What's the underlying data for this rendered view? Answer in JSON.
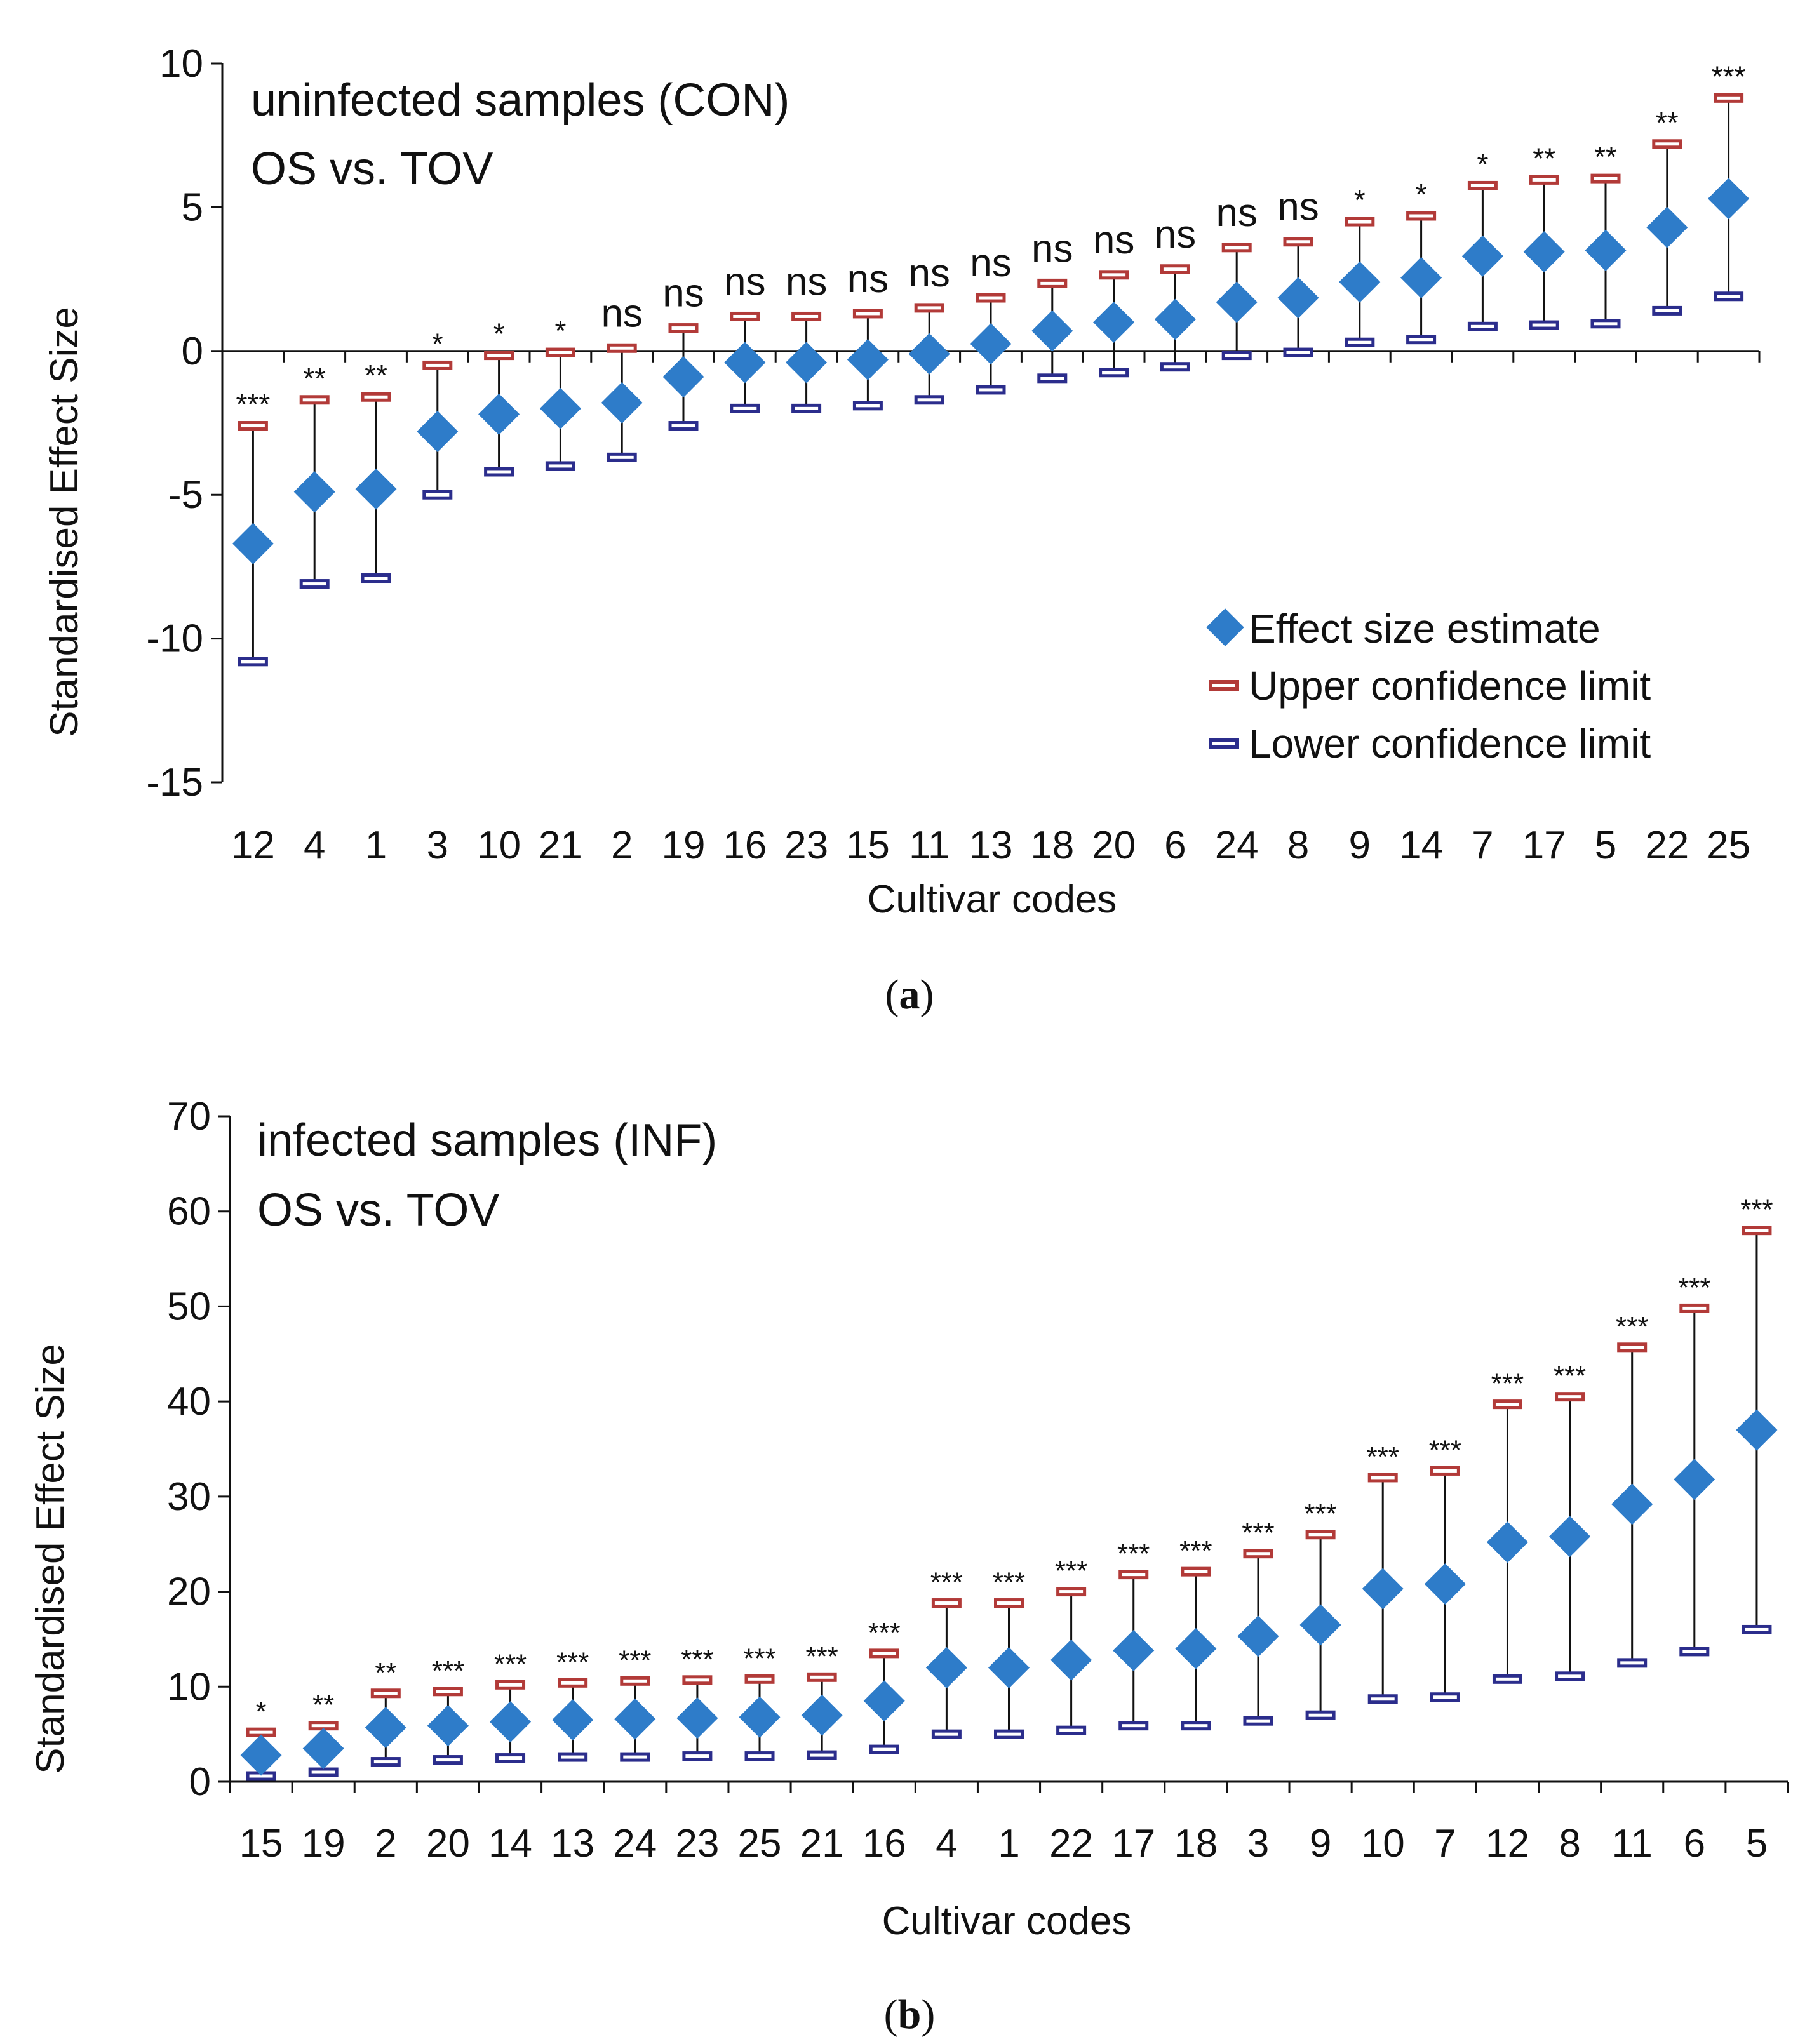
{
  "chart_data": [
    {
      "type": "scatter",
      "panel": "a",
      "title_lines": [
        "uninfected samples (CON)",
        "OS vs. TOV"
      ],
      "xlabel": "Cultivar codes",
      "ylabel": "Standardised Effect Size",
      "ylim": [
        -15,
        10
      ],
      "yticks": [
        10,
        5,
        0,
        -5,
        -10,
        -15
      ],
      "categories": [
        "12",
        "4",
        "1",
        "3",
        "10",
        "21",
        "2",
        "19",
        "16",
        "23",
        "15",
        "11",
        "13",
        "18",
        "20",
        "6",
        "24",
        "8",
        "9",
        "14",
        "7",
        "17",
        "5",
        "22",
        "25"
      ],
      "estimate": [
        -6.7,
        -4.9,
        -4.8,
        -2.8,
        -2.2,
        -2.0,
        -1.8,
        -0.9,
        -0.4,
        -0.4,
        -0.3,
        -0.1,
        0.25,
        0.7,
        1.0,
        1.1,
        1.7,
        1.85,
        2.4,
        2.55,
        3.3,
        3.45,
        3.5,
        4.3,
        5.3
      ],
      "upper": [
        -2.6,
        -1.7,
        -1.6,
        -0.5,
        -0.15,
        -0.05,
        0.1,
        0.8,
        1.2,
        1.2,
        1.3,
        1.5,
        1.85,
        2.35,
        2.65,
        2.85,
        3.6,
        3.8,
        4.5,
        4.7,
        5.75,
        5.95,
        6.0,
        7.2,
        8.8
      ],
      "lower": [
        -10.8,
        -8.1,
        -7.9,
        -5.0,
        -4.2,
        -4.0,
        -3.7,
        -2.6,
        -2.0,
        -2.0,
        -1.9,
        -1.7,
        -1.35,
        -0.95,
        -0.75,
        -0.55,
        -0.15,
        -0.05,
        0.3,
        0.4,
        0.85,
        0.9,
        0.95,
        1.4,
        1.9
      ],
      "significance": [
        "***",
        "**",
        "**",
        "*",
        "*",
        "*",
        "ns",
        "ns",
        "ns",
        "ns",
        "ns",
        "ns",
        "ns",
        "ns",
        "ns",
        "ns",
        "ns",
        "ns",
        "*",
        "*",
        "*",
        "**",
        "**",
        "**",
        "***"
      ],
      "legend": [
        "Effect size estimate",
        "Upper confidence limit",
        "Lower confidence limit"
      ],
      "legend_position": "bottom-right",
      "caption": "a"
    },
    {
      "type": "scatter",
      "panel": "b",
      "title_lines": [
        "infected samples (INF)",
        "OS vs. TOV"
      ],
      "xlabel": "Cultivar codes",
      "ylabel": "Standardised Effect Size",
      "ylim": [
        0,
        70
      ],
      "yticks": [
        70,
        60,
        50,
        40,
        30,
        20,
        10,
        0
      ],
      "categories": [
        "15",
        "19",
        "2",
        "20",
        "14",
        "13",
        "24",
        "23",
        "25",
        "21",
        "16",
        "4",
        "1",
        "22",
        "17",
        "18",
        "3",
        "9",
        "10",
        "7",
        "12",
        "8",
        "11",
        "6",
        "5"
      ],
      "estimate": [
        2.8,
        3.5,
        5.7,
        5.9,
        6.3,
        6.5,
        6.6,
        6.7,
        6.8,
        7.0,
        8.5,
        12.0,
        12.0,
        12.8,
        13.8,
        14.0,
        15.3,
        16.5,
        20.3,
        20.8,
        25.2,
        25.8,
        29.2,
        31.8,
        37.0
      ],
      "upper": [
        5.2,
        5.9,
        9.3,
        9.5,
        10.2,
        10.4,
        10.6,
        10.7,
        10.8,
        11.0,
        13.5,
        18.8,
        18.8,
        20.0,
        21.8,
        22.1,
        24.0,
        26.0,
        32.0,
        32.7,
        39.7,
        40.5,
        45.7,
        49.8,
        58.0
      ],
      "lower": [
        0.6,
        1.0,
        2.1,
        2.3,
        2.5,
        2.6,
        2.6,
        2.7,
        2.7,
        2.8,
        3.4,
        5.0,
        5.0,
        5.4,
        5.9,
        5.9,
        6.4,
        7.0,
        8.7,
        8.9,
        10.8,
        11.1,
        12.5,
        13.7,
        16.0
      ],
      "significance": [
        "*",
        "**",
        "**",
        "***",
        "***",
        "***",
        "***",
        "***",
        "***",
        "***",
        "***",
        "***",
        "***",
        "***",
        "***",
        "***",
        "***",
        "***",
        "***",
        "***",
        "***",
        "***",
        "***",
        "***",
        "***"
      ],
      "caption": "b"
    }
  ],
  "colors": {
    "marker": "#2E7CC9",
    "upper": "#B23A38",
    "lower": "#2B2D8C",
    "axis": "#111111"
  }
}
